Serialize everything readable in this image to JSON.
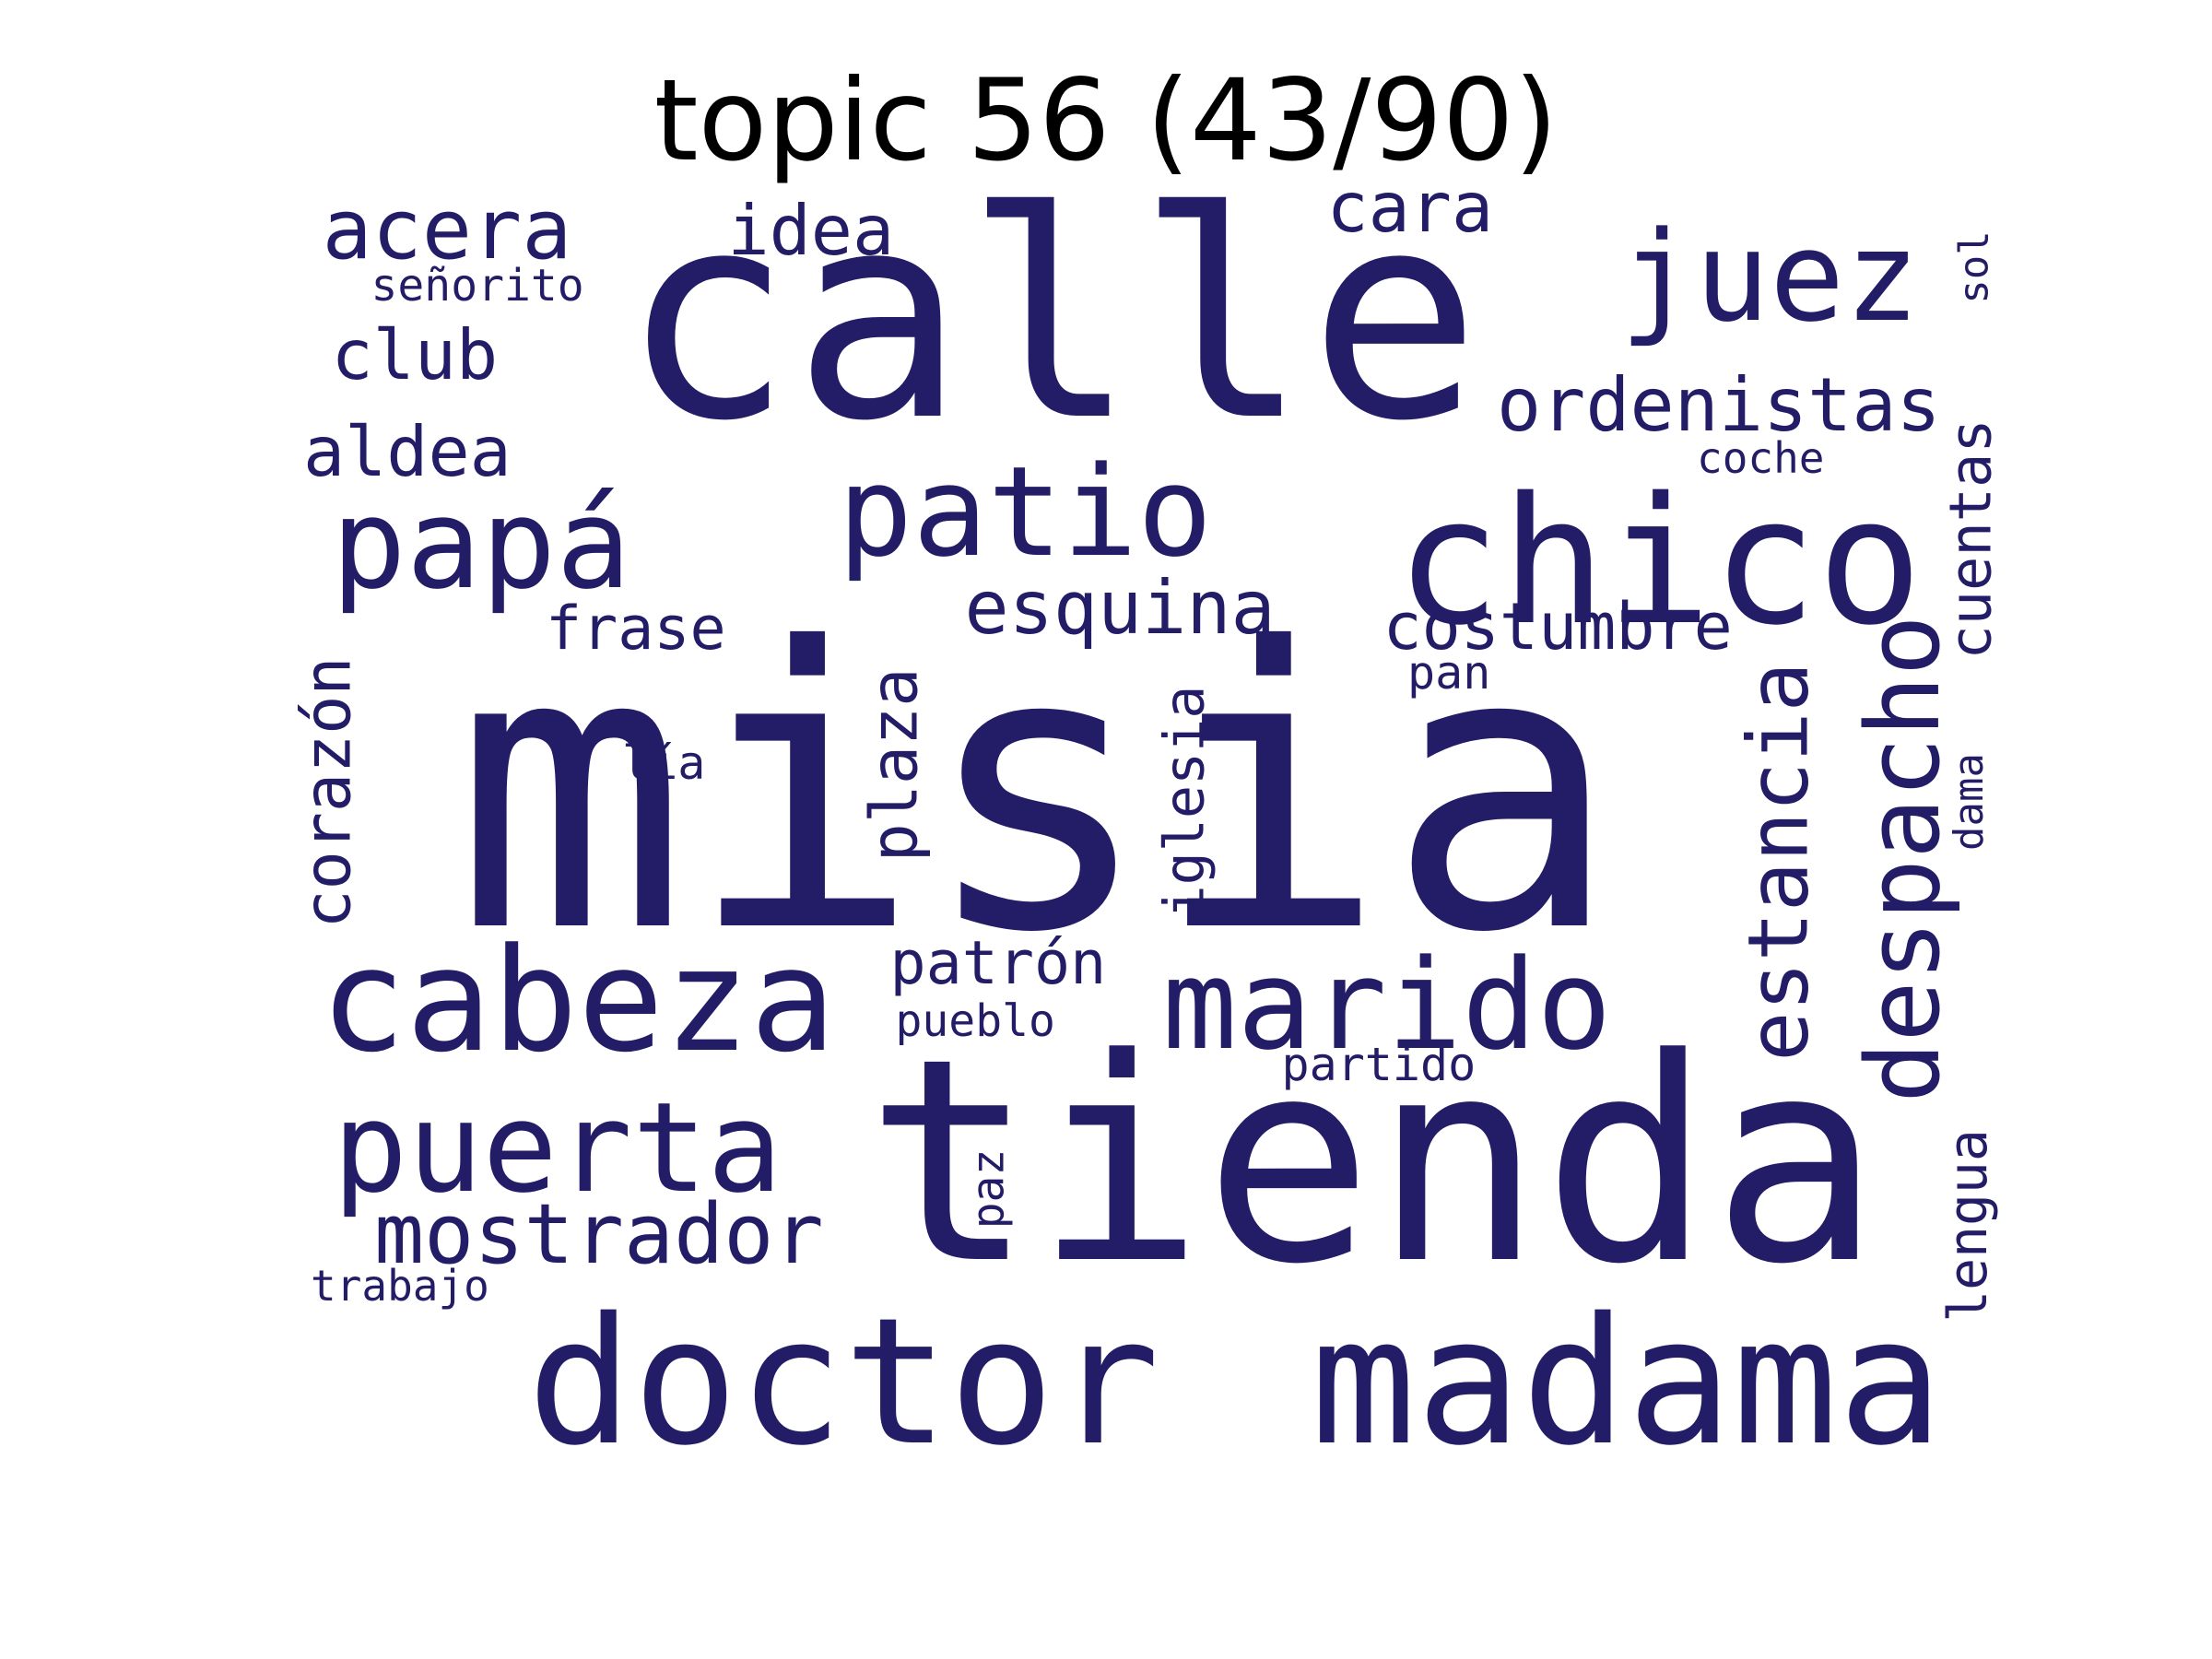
{
  "title": "topic 56 (43/90)",
  "color": "#231C66",
  "words": [
    {
      "key": "misia",
      "text": "misia"
    },
    {
      "key": "calle",
      "text": "calle"
    },
    {
      "key": "tienda",
      "text": "tienda"
    },
    {
      "key": "doctor",
      "text": "doctor"
    },
    {
      "key": "madama",
      "text": "madama"
    },
    {
      "key": "chico",
      "text": "chico"
    },
    {
      "key": "juez",
      "text": "juez"
    },
    {
      "key": "cabeza",
      "text": "cabeza"
    },
    {
      "key": "marido",
      "text": "marido"
    },
    {
      "key": "papa",
      "text": "papá"
    },
    {
      "key": "patio",
      "text": "patio"
    },
    {
      "key": "puerta",
      "text": "puerta"
    },
    {
      "key": "acera",
      "text": "acera"
    },
    {
      "key": "mostrador",
      "text": "mostrador"
    },
    {
      "key": "despacho",
      "text": "despacho"
    },
    {
      "key": "estancia",
      "text": "estancia"
    },
    {
      "key": "ordenistas",
      "text": "ordenistas"
    },
    {
      "key": "esquina",
      "text": "esquina"
    },
    {
      "key": "idea",
      "text": "idea"
    },
    {
      "key": "cara",
      "text": "cara"
    },
    {
      "key": "club",
      "text": "club"
    },
    {
      "key": "aldea",
      "text": "aldea"
    },
    {
      "key": "costumbre",
      "text": "costumbre"
    },
    {
      "key": "corazon",
      "text": "corazón"
    },
    {
      "key": "plaza",
      "text": "plaza"
    },
    {
      "key": "cuentas",
      "text": "cuentas"
    },
    {
      "key": "frase",
      "text": "frase"
    },
    {
      "key": "patron",
      "text": "patrón"
    },
    {
      "key": "iglesia",
      "text": "iglesia"
    },
    {
      "key": "lengua",
      "text": "lengua"
    },
    {
      "key": "partido",
      "text": "partido"
    },
    {
      "key": "pueblo",
      "text": "pueblo"
    },
    {
      "key": "senorito",
      "text": "señorito"
    },
    {
      "key": "coche",
      "text": "coche"
    },
    {
      "key": "trabajo",
      "text": "trabajo"
    },
    {
      "key": "pan",
      "text": "pan"
    },
    {
      "key": "lia",
      "text": "lía"
    },
    {
      "key": "paz",
      "text": "paz"
    },
    {
      "key": "sol",
      "text": "sol"
    },
    {
      "key": "dama",
      "text": "dama"
    }
  ]
}
